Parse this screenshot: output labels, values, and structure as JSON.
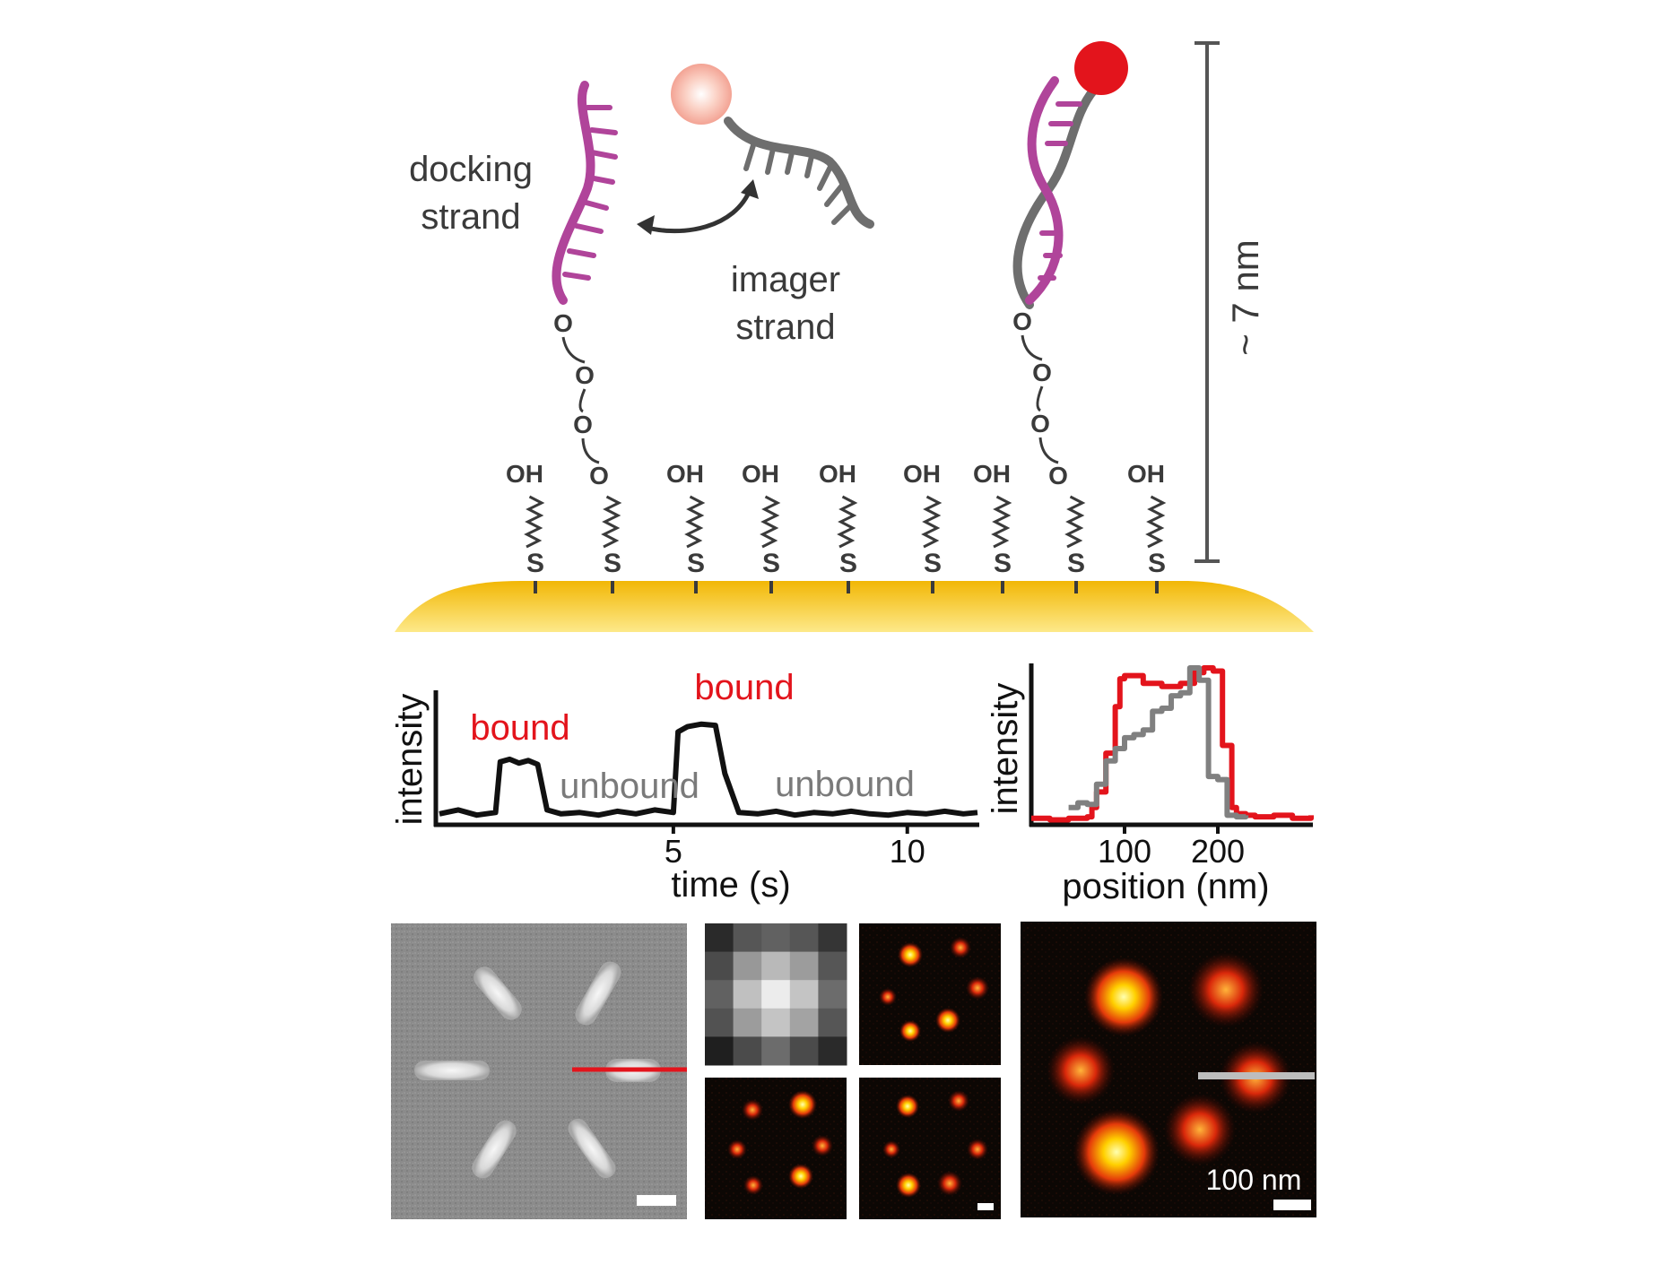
{
  "colors": {
    "docking": "#b0449a",
    "imager": "#6e6e6e",
    "fluor_red": "#e3141c",
    "gold_top": "#f2b705",
    "gold_bottom": "#fde46a",
    "trace": "#111111",
    "profile_grey": "#808080"
  },
  "schematic": {
    "docking_label_1": "docking",
    "docking_label_2": "strand",
    "imager_label_1": "imager",
    "imager_label_2": "strand",
    "height_label": "~ 7 nm",
    "oh": "OH",
    "s": "S",
    "o": "O"
  },
  "trace": {
    "ylabel": "intensity",
    "xlabel": "time (s)",
    "xticks": [
      "5",
      "10"
    ],
    "bound_label": "bound",
    "unbound_label": "unbound",
    "xlim": [
      0,
      11.5
    ],
    "bound_intervals": [
      [
        1.3,
        2.1
      ],
      [
        5.1,
        6.1
      ]
    ],
    "chart_data": {
      "type": "line",
      "x_range": [
        0,
        11.5
      ],
      "series": [
        {
          "x": [
            0.0,
            0.4,
            0.8,
            1.2,
            1.3,
            1.5,
            1.7,
            1.9,
            2.1,
            2.3,
            2.6,
            3.0,
            3.4,
            3.8,
            4.2,
            4.6,
            5.0,
            5.1,
            5.3,
            5.6,
            5.9,
            6.1,
            6.4,
            6.8,
            7.2,
            7.6,
            8.0,
            8.4,
            8.8,
            9.2,
            9.6,
            10.0,
            10.4,
            10.8,
            11.2,
            11.5
          ],
          "y": [
            0.05,
            0.08,
            0.04,
            0.06,
            0.45,
            0.47,
            0.44,
            0.46,
            0.43,
            0.08,
            0.05,
            0.06,
            0.04,
            0.07,
            0.05,
            0.08,
            0.06,
            0.68,
            0.72,
            0.74,
            0.73,
            0.36,
            0.06,
            0.05,
            0.07,
            0.04,
            0.06,
            0.05,
            0.07,
            0.05,
            0.04,
            0.06,
            0.05,
            0.07,
            0.05,
            0.06
          ]
        }
      ]
    }
  },
  "profile": {
    "ylabel": "intensity",
    "xlabel": "position (nm)",
    "xticks": [
      "100",
      "200"
    ],
    "xlim": [
      0,
      300
    ],
    "chart_data": {
      "type": "line",
      "x_range": [
        0,
        300
      ],
      "series": [
        {
          "color": "red",
          "x": [
            0,
            20,
            40,
            60,
            65,
            70,
            80,
            90,
            95,
            100,
            120,
            140,
            160,
            175,
            185,
            195,
            205,
            215,
            220,
            230,
            240,
            260,
            280,
            300
          ],
          "y": [
            0.03,
            0.02,
            0.03,
            0.04,
            0.1,
            0.2,
            0.45,
            0.75,
            0.93,
            0.95,
            0.9,
            0.88,
            0.9,
            0.97,
            1.0,
            0.98,
            0.5,
            0.1,
            0.06,
            0.05,
            0.04,
            0.05,
            0.03,
            0.05
          ]
        },
        {
          "color": "grey",
          "x": [
            40,
            50,
            60,
            70,
            80,
            90,
            100,
            110,
            120,
            130,
            140,
            150,
            160,
            170,
            180,
            190,
            200,
            210,
            220,
            230
          ],
          "y": [
            0.1,
            0.13,
            0.12,
            0.25,
            0.4,
            0.48,
            0.55,
            0.57,
            0.6,
            0.72,
            0.74,
            0.82,
            0.84,
            1.0,
            0.92,
            0.3,
            0.28,
            0.05,
            0.04,
            0.05
          ]
        }
      ]
    }
  },
  "images": {
    "scale_bar_label": "100 nm"
  }
}
